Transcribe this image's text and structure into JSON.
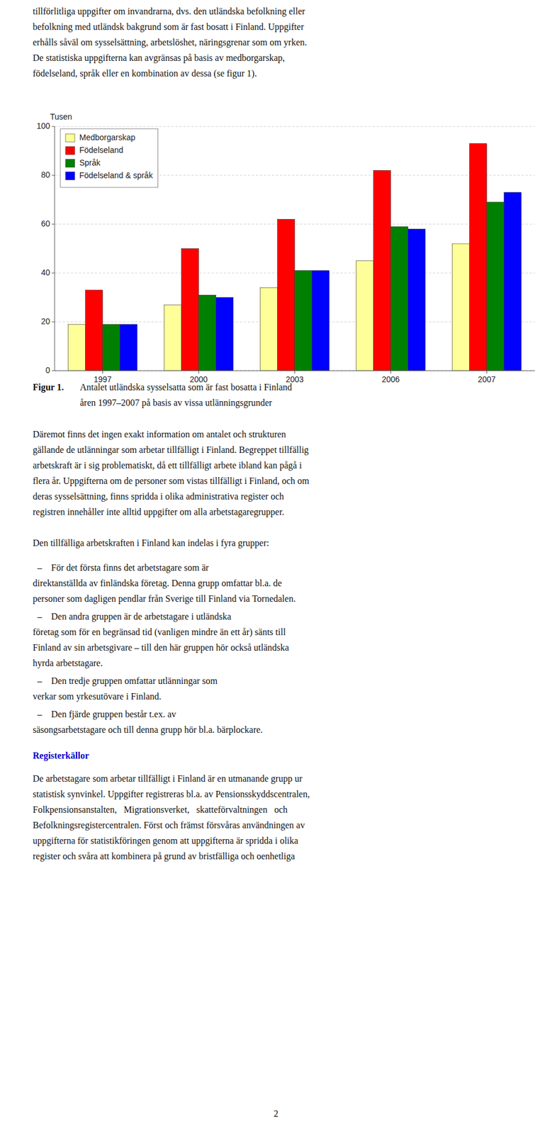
{
  "chart_data": {
    "type": "bar",
    "y_label": "Tusen",
    "categories": [
      "1997",
      "2000",
      "2003",
      "2006",
      "2007"
    ],
    "series": [
      {
        "name": "Medborgarskap",
        "color": "#FFFF99",
        "values": [
          19,
          27,
          34,
          45,
          52
        ]
      },
      {
        "name": "Födelseland",
        "color": "#FF0000",
        "values": [
          33,
          50,
          62,
          82,
          93
        ]
      },
      {
        "name": "Språk",
        "color": "#008000",
        "values": [
          19,
          31,
          41,
          59,
          69
        ]
      },
      {
        "name": "Födelseland & språk",
        "color": "#0000FF",
        "values": [
          19,
          30,
          41,
          58,
          73
        ]
      }
    ],
    "ylim": [
      0,
      100
    ],
    "yticks": [
      0,
      20,
      40,
      60,
      80,
      100
    ],
    "grid": true,
    "legend": "upper-left"
  },
  "top_texts": [
    "tillförlitliga uppgifter om invandrarna, dvs. den utländska befolkning eller",
    "befolkning med utländsk bakgrund som är fast bosatt i Finland. Uppgifter",
    "erhålls såväl om sysselsättning, arbetslöshet, näringsgrenar som om yrken.",
    "De statistiska uppgifterna kan avgränsas på basis av medborgarskap,",
    "födelseland, språk eller en kombination av dessa (se figur 1)."
  ],
  "caption": {
    "label": "Figur 1.",
    "lines": [
      "Antalet utländska sysselsatta som är fast bosatta i Finland",
      "åren 1997–2007 på basis av vissa utlänningsgrunder"
    ]
  },
  "body_para1": [
    "Däremot finns det ingen exakt information om antalet och strukturen",
    "gällande de utlänningar som arbetar tillfälligt i Finland. Begreppet tillfällig",
    "arbetskraft är i sig problematiskt, då ett tillfälligt arbete ibland kan pågå i",
    "flera år. Uppgifterna om de personer som vistas tillfälligt i Finland, och om",
    "deras sysselsättning, finns spridda i olika administrativa register och",
    "registren innehåller inte alltid uppgifter om alla arbetstagaregrupper."
  ],
  "body_para2": "Den tillfälliga arbetskraften i Finland kan indelas i fyra grupper:",
  "bullet_marker": "–",
  "bullet_items": [
    [
      "För det första finns det arbetstagare som är",
      "direktanställda av finländska företag. Denna grupp omfattar bl.a. de",
      "personer som dagligen pendlar från Sverige till Finland via Tornedalen."
    ],
    [
      "Den andra gruppen är de arbetstagare i utländska",
      "företag som för en begränsad tid (vanligen mindre än ett år) sänts till",
      "Finland av sin arbetsgivare – till den här gruppen hör också utländska",
      "hyrda arbetstagare."
    ],
    [
      "Den tredje gruppen omfattar utlänningar som",
      "verkar som yrkesutövare i Finland."
    ],
    [
      "Den fjärde gruppen består t.ex. av",
      "säsongsarbetstagare och till denna grupp hör bl.a. bärplockare."
    ]
  ],
  "section_header": {
    "text": "Registerkällor",
    "color": "#0000CC"
  },
  "body_para3": [
    "De arbetstagare som arbetar tillfälligt i Finland är en utmanande grupp ur",
    "statistisk synvinkel. Uppgifter registreras bl.a. av Pensionsskyddscentralen,",
    "Folkpensionsanstalten,   Migrationsverket,   skatteförvaltningen   och",
    "Befolkningsregistercentralen. Först och främst försvåras användningen av",
    "uppgifterna för statistikföringen genom att uppgifterna är spridda i olika",
    "register och svåra att kombinera på grund av bristfälliga och oenhetliga"
  ],
  "page_number": "2"
}
